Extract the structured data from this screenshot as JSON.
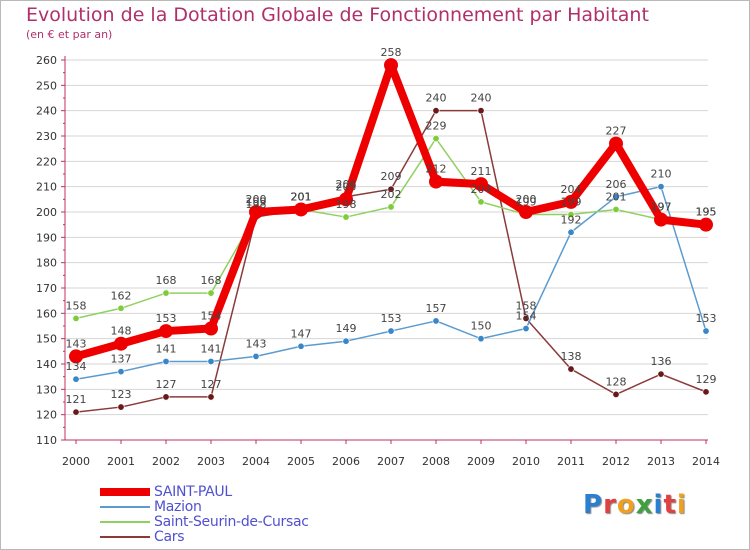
{
  "title": "Evolution de la Dotation Globale de Fonctionnement par Habitant",
  "subtitle": "(en € et par an)",
  "logo_text": "Proxiti",
  "colors": {
    "title": "#b0306b",
    "axis": "#c03060",
    "grid": "#d0d0d0",
    "legend_text": "#5050d0"
  },
  "chart_data": {
    "type": "line",
    "title": "Evolution de la Dotation Globale de Fonctionnement par Habitant",
    "subtitle": "(en € et par an)",
    "xlabel": "",
    "ylabel": "",
    "x": [
      "2000",
      "2001",
      "2002",
      "2003",
      "2004",
      "2005",
      "2006",
      "2007",
      "2008",
      "2009",
      "2010",
      "2011",
      "2012",
      "2013",
      "2014"
    ],
    "ylim": [
      110,
      260
    ],
    "yticks": [
      110,
      120,
      130,
      140,
      150,
      160,
      170,
      180,
      190,
      200,
      210,
      220,
      230,
      240,
      250,
      260
    ],
    "grid": "horizontal",
    "legend_position": "bottom-left",
    "series": [
      {
        "name": "SAINT-PAUL",
        "color": "#ee0000",
        "marker_color": "#ee0000",
        "width": 8,
        "values": [
          143,
          148,
          153,
          154,
          200,
          201,
          205,
          258,
          212,
          211,
          200,
          204,
          227,
          197,
          195
        ],
        "labels": [
          "143",
          "148",
          "153",
          "154",
          "200",
          "201",
          "205",
          "258",
          "212",
          "211",
          "200",
          "204",
          "227",
          "197",
          "195"
        ]
      },
      {
        "name": "Mazion",
        "color": "#5a9bd0",
        "marker_color": "#3a87c8",
        "width": 1.5,
        "values": [
          134,
          137,
          141,
          141,
          143,
          147,
          149,
          153,
          157,
          150,
          154,
          192,
          206,
          210,
          153
        ],
        "labels": [
          "134",
          "137",
          "141",
          "141",
          "143",
          "147",
          "149",
          "153",
          "157",
          "150",
          "154",
          "192",
          "206",
          "210",
          "153"
        ]
      },
      {
        "name": "Saint-Seurin-de-Cursac",
        "color": "#90d060",
        "marker_color": "#7fcc3a",
        "width": 1.5,
        "values": [
          158,
          162,
          168,
          168,
          199,
          201,
          198,
          202,
          229,
          204,
          199,
          199,
          201,
          197,
          195
        ],
        "labels": [
          "158",
          "162",
          "168",
          "168",
          "199",
          "201",
          "198",
          "202",
          "229",
          "204",
          "199",
          "199",
          "201",
          "197",
          "195"
        ]
      },
      {
        "name": "Cars",
        "color": "#8b3a3a",
        "marker_color": "#6a1818",
        "width": 1.5,
        "values": [
          121,
          123,
          127,
          127,
          198,
          201,
          206,
          209,
          240,
          240,
          158,
          138,
          128,
          136,
          129
        ],
        "labels": [
          "121",
          "123",
          "127",
          "127",
          "198",
          "201",
          "206",
          "209",
          "240",
          "240",
          "158",
          "138",
          "128",
          "136",
          "129"
        ]
      }
    ]
  }
}
